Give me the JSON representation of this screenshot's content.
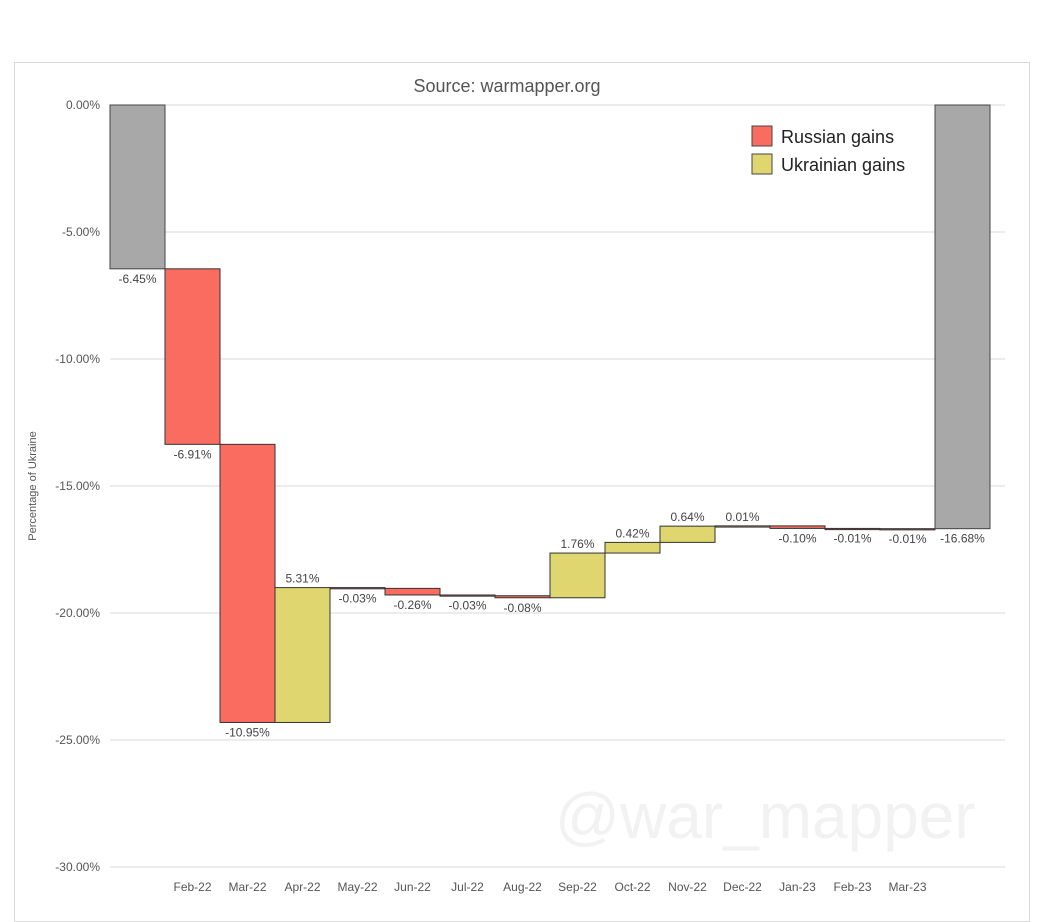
{
  "chart_data": {
    "type": "waterfall",
    "title": "Source: warmapper.org",
    "ylabel": "Percentage of Ukraine",
    "xlabel": "",
    "ylim": [
      -30,
      0
    ],
    "yticks": [
      0,
      -5,
      -10,
      -15,
      -20,
      -25,
      -30
    ],
    "ytick_labels": [
      "0.00%",
      "-5.00%",
      "-10.00%",
      "-15.00%",
      "-20.00%",
      "-25.00%",
      "-30.00%"
    ],
    "grid": true,
    "legend": {
      "position": "top-right",
      "entries": [
        "Russian gains",
        "Ukrainian gains"
      ]
    },
    "start": {
      "value": -6.45,
      "label": "-6.45%"
    },
    "end": {
      "value": -16.68,
      "label": "-16.68%"
    },
    "categories": [
      "Feb-22",
      "Mar-22",
      "Apr-22",
      "May-22",
      "Jun-22",
      "Jul-22",
      "Aug-22",
      "Sep-22",
      "Oct-22",
      "Nov-22",
      "Dec-22",
      "Jan-23",
      "Feb-23",
      "Mar-23"
    ],
    "values": [
      -6.91,
      -10.95,
      5.31,
      -0.03,
      -0.26,
      -0.03,
      -0.08,
      1.76,
      0.42,
      0.64,
      0.01,
      -0.1,
      -0.01,
      -0.01
    ],
    "labels": [
      "-6.91%",
      "-10.95%",
      "5.31%",
      "-0.03%",
      "-0.26%",
      "-0.03%",
      "-0.08%",
      "1.76%",
      "0.42%",
      "0.64%",
      "0.01%",
      "-0.10%",
      "-0.01%",
      "-0.01%"
    ],
    "watermark": "@war_mapper",
    "colors": {
      "russian": "#fa6b60",
      "ukrainian": "#e0d66f",
      "total": "#a8a8a8",
      "grid": "#d9d9d9"
    }
  }
}
